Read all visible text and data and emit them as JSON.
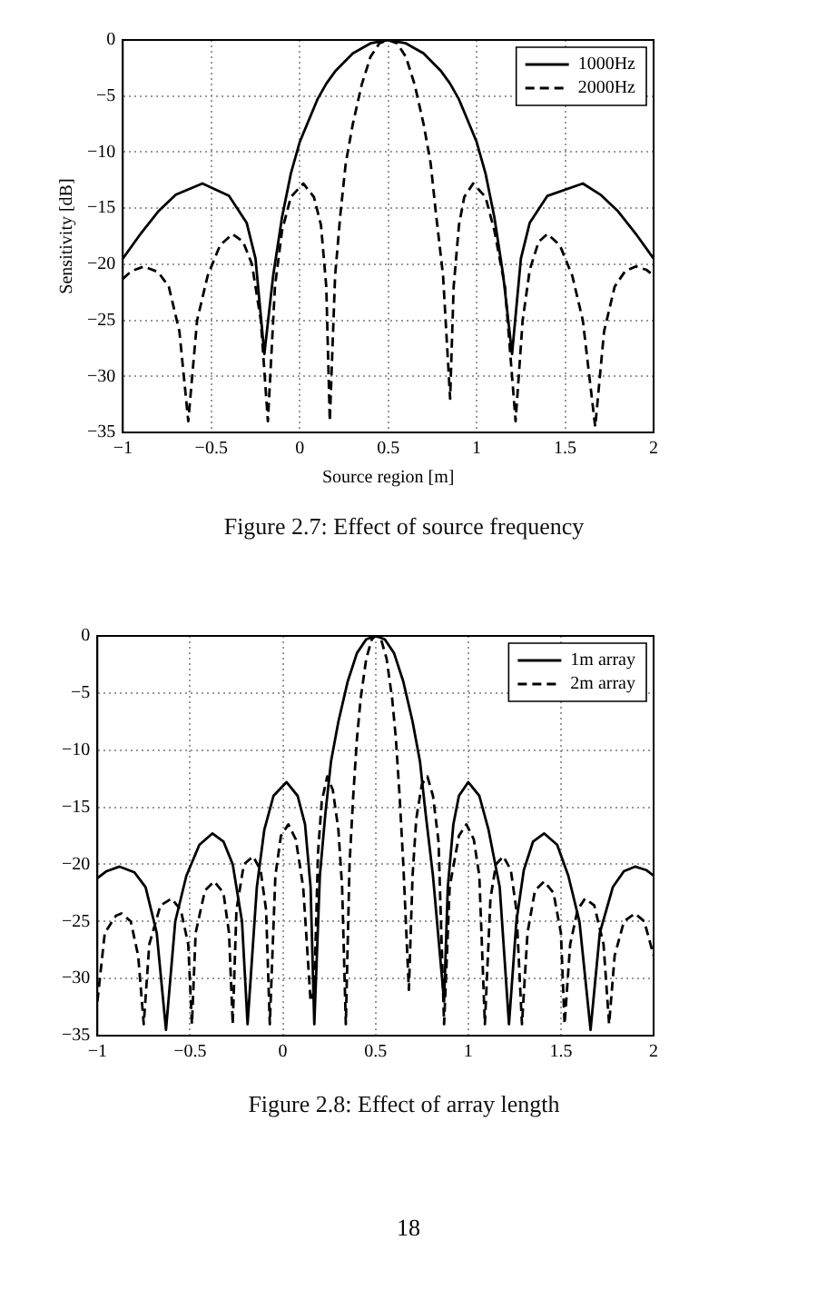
{
  "chart_data": [
    {
      "type": "line",
      "xlabel": "Source region [m]",
      "ylabel": "Sensitivity [dB]",
      "xlim": [
        -1,
        2
      ],
      "xticks": [
        -1,
        -0.5,
        0,
        0.5,
        1,
        1.5,
        2
      ],
      "ylim": [
        -35,
        0
      ],
      "yticks": [
        -35,
        -30,
        -25,
        -20,
        -15,
        -10,
        -5,
        0
      ],
      "grid": true,
      "legend": "top right",
      "annotations": [
        "Figure 2.7: Effect of source frequency"
      ],
      "series": [
        {
          "name": "1000Hz",
          "color": "#000000",
          "line_style": "solid",
          "x": [
            -1,
            -0.9,
            -0.8,
            -0.7,
            -0.55,
            -0.4,
            -0.3,
            -0.25,
            -0.2,
            -0.15,
            -0.1,
            -0.05,
            0,
            0.1,
            0.15,
            0.2,
            0.3,
            0.4,
            0.5,
            0.6,
            0.7,
            0.8,
            0.85,
            0.9,
            1,
            1.05,
            1.1,
            1.15,
            1.2,
            1.25,
            1.3,
            1.4,
            1.6,
            1.7,
            1.8,
            1.9,
            2
          ],
          "values": [
            -19.5,
            -17.3,
            -15.3,
            -13.8,
            -12.8,
            -13.9,
            -16.3,
            -19.5,
            -28,
            -21,
            -15.8,
            -11.9,
            -9.1,
            -5.3,
            -3.9,
            -2.8,
            -1.2,
            -0.3,
            0,
            -0.3,
            -1.2,
            -2.8,
            -3.9,
            -5.3,
            -9.1,
            -11.9,
            -15.8,
            -21,
            -28,
            -19.5,
            -16.3,
            -13.9,
            -12.8,
            -13.8,
            -15.3,
            -17.3,
            -19.5
          ]
        },
        {
          "name": "2000Hz",
          "color": "#000000",
          "line_style": "dashed",
          "x": [
            -1,
            -0.95,
            -0.88,
            -0.8,
            -0.74,
            -0.68,
            -0.63,
            -0.58,
            -0.52,
            -0.45,
            -0.38,
            -0.32,
            -0.27,
            -0.22,
            -0.18,
            -0.14,
            -0.1,
            -0.05,
            0.02,
            0.08,
            0.12,
            0.15,
            0.17,
            0.2,
            0.23,
            0.26,
            0.3,
            0.35,
            0.4,
            0.45,
            0.5,
            0.55,
            0.6,
            0.65,
            0.7,
            0.74,
            0.77,
            0.81,
            0.85,
            0.87,
            0.9,
            0.93,
            0.98,
            1.05,
            1.1,
            1.16,
            1.22,
            1.26,
            1.3,
            1.35,
            1.4,
            1.47,
            1.54,
            1.6,
            1.67,
            1.72,
            1.78,
            1.84,
            1.9,
            1.96,
            2
          ],
          "values": [
            -21.3,
            -20.6,
            -20.2,
            -20.7,
            -22,
            -26,
            -34,
            -25,
            -21,
            -18.3,
            -17.3,
            -18,
            -20,
            -25,
            -34,
            -22,
            -17,
            -14,
            -12.8,
            -14,
            -16.5,
            -22,
            -34,
            -21,
            -15.5,
            -11,
            -7.5,
            -4,
            -1.5,
            -0.3,
            0,
            -0.3,
            -1.5,
            -4,
            -7.5,
            -11,
            -15.5,
            -21,
            -32,
            -22,
            -16.5,
            -14,
            -12.8,
            -14,
            -17,
            -22,
            -34,
            -25,
            -20.5,
            -18,
            -17.3,
            -18.3,
            -21,
            -25,
            -34.5,
            -26,
            -22,
            -20.6,
            -20.2,
            -20.5,
            -21
          ]
        }
      ]
    },
    {
      "type": "line",
      "xlim": [
        -1,
        2
      ],
      "xticks": [
        -1,
        -0.5,
        0,
        0.5,
        1,
        1.5,
        2
      ],
      "ylim": [
        -35,
        0
      ],
      "yticks": [
        -35,
        -30,
        -25,
        -20,
        -15,
        -10,
        -5,
        0
      ],
      "grid": true,
      "legend": "top right",
      "annotations": [
        "Figure 2.8: Effect of array length",
        "18"
      ],
      "series": [
        {
          "name": "1m array",
          "color": "#000000",
          "line_style": "solid",
          "x": [
            -1,
            -0.95,
            -0.88,
            -0.8,
            -0.74,
            -0.68,
            -0.63,
            -0.58,
            -0.52,
            -0.45,
            -0.38,
            -0.32,
            -0.27,
            -0.22,
            -0.19,
            -0.14,
            -0.1,
            -0.05,
            0.02,
            0.08,
            0.12,
            0.15,
            0.17,
            0.2,
            0.23,
            0.26,
            0.3,
            0.35,
            0.4,
            0.45,
            0.5,
            0.55,
            0.6,
            0.65,
            0.7,
            0.74,
            0.77,
            0.81,
            0.87,
            0.89,
            0.92,
            0.95,
            1,
            1.06,
            1.11,
            1.17,
            1.22,
            1.26,
            1.3,
            1.35,
            1.41,
            1.48,
            1.54,
            1.6,
            1.66,
            1.71,
            1.78,
            1.84,
            1.9,
            1.96,
            2
          ],
          "values": [
            -21.2,
            -20.6,
            -20.2,
            -20.7,
            -22,
            -26,
            -34.5,
            -25,
            -21,
            -18.3,
            -17.3,
            -18,
            -20,
            -25,
            -34,
            -22,
            -17,
            -14,
            -12.8,
            -14,
            -16.5,
            -22,
            -34,
            -21,
            -15.5,
            -11,
            -7.5,
            -4,
            -1.5,
            -0.3,
            0,
            -0.3,
            -1.5,
            -4,
            -7.5,
            -11,
            -15.5,
            -21,
            -32,
            -22,
            -16.5,
            -14,
            -12.8,
            -14,
            -17,
            -22,
            -34,
            -25,
            -20.5,
            -18,
            -17.3,
            -18.3,
            -21,
            -25,
            -34.5,
            -26,
            -22,
            -20.6,
            -20.2,
            -20.5,
            -21
          ]
        },
        {
          "name": "2m array",
          "color": "#000000",
          "line_style": "dashed",
          "x": [
            -1,
            -0.96,
            -0.9,
            -0.87,
            -0.82,
            -0.78,
            -0.75,
            -0.72,
            -0.66,
            -0.6,
            -0.55,
            -0.51,
            -0.49,
            -0.47,
            -0.42,
            -0.37,
            -0.32,
            -0.29,
            -0.27,
            -0.25,
            -0.21,
            -0.16,
            -0.12,
            -0.09,
            -0.07,
            -0.04,
            -0.01,
            0.03,
            0.07,
            0.11,
            0.15,
            0.17,
            0.19,
            0.21,
            0.24,
            0.27,
            0.3,
            0.32,
            0.34,
            0.36,
            0.38,
            0.4,
            0.42,
            0.45,
            0.48,
            0.5,
            0.53,
            0.56,
            0.59,
            0.61,
            0.63,
            0.65,
            0.68,
            0.7,
            0.72,
            0.75,
            0.78,
            0.81,
            0.84,
            0.87,
            0.9,
            0.95,
            0.99,
            1.03,
            1.06,
            1.09,
            1.12,
            1.15,
            1.19,
            1.23,
            1.26,
            1.29,
            1.32,
            1.36,
            1.41,
            1.46,
            1.5,
            1.52,
            1.55,
            1.59,
            1.63,
            1.68,
            1.73,
            1.76,
            1.79,
            1.84,
            1.9,
            1.95,
            2
          ],
          "values": [
            -32,
            -26,
            -24.5,
            -24.3,
            -25,
            -28,
            -34,
            -27,
            -23.6,
            -23,
            -24,
            -27,
            -34,
            -26,
            -22.3,
            -21.5,
            -22.5,
            -26,
            -34,
            -24,
            -20,
            -19.3,
            -20.5,
            -24,
            -34,
            -21,
            -17.5,
            -16.5,
            -17.8,
            -22,
            -32,
            -31,
            -19,
            -14.5,
            -12.3,
            -13.5,
            -17,
            -22,
            -34,
            -20,
            -14,
            -9,
            -5.5,
            -2,
            -0.3,
            0,
            -0.3,
            -2,
            -5.5,
            -9,
            -14,
            -20,
            -31,
            -21,
            -16,
            -13,
            -12.3,
            -14,
            -18,
            -34,
            -22,
            -17.5,
            -16.5,
            -17.8,
            -21,
            -34,
            -23,
            -20,
            -19.3,
            -20.5,
            -24,
            -34,
            -26,
            -22.3,
            -21.5,
            -22.5,
            -26,
            -34,
            -27,
            -24,
            -23,
            -23.6,
            -27,
            -34,
            -28,
            -25,
            -24.3,
            -25,
            -28
          ]
        }
      ]
    }
  ]
}
